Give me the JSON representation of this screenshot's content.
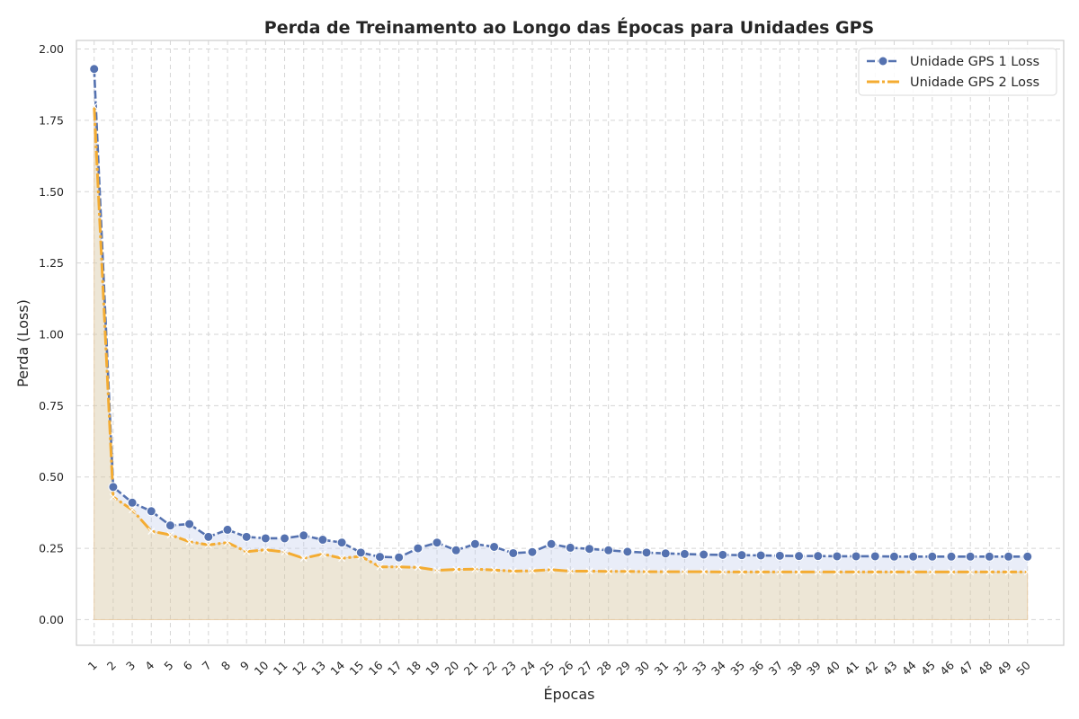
{
  "chart_data": {
    "type": "line",
    "title": "Perda de Treinamento ao Longo das Épocas para Unidades GPS",
    "xlabel": "Épocas",
    "ylabel": "Perda (Loss)",
    "x": [
      1,
      2,
      3,
      4,
      5,
      6,
      7,
      8,
      9,
      10,
      11,
      12,
      13,
      14,
      15,
      16,
      17,
      18,
      19,
      20,
      21,
      22,
      23,
      24,
      25,
      26,
      27,
      28,
      29,
      30,
      31,
      32,
      33,
      34,
      35,
      36,
      37,
      38,
      39,
      40,
      41,
      42,
      43,
      44,
      45,
      46,
      47,
      48,
      49,
      50
    ],
    "ylim": [
      -0.09,
      2.03
    ],
    "yticks": [
      "0.00",
      "0.25",
      "0.50",
      "0.75",
      "1.00",
      "1.25",
      "1.50",
      "1.75",
      "2.00"
    ],
    "grid": true,
    "legend_position": "top-right",
    "series": [
      {
        "name": "Unidade GPS 1 Loss",
        "color": "#5572b0",
        "marker": "circle",
        "line_style": "dashed",
        "values": [
          1.93,
          0.465,
          0.41,
          0.38,
          0.33,
          0.335,
          0.29,
          0.315,
          0.29,
          0.285,
          0.285,
          0.295,
          0.28,
          0.27,
          0.235,
          0.22,
          0.218,
          0.25,
          0.27,
          0.243,
          0.265,
          0.255,
          0.233,
          0.237,
          0.265,
          0.252,
          0.248,
          0.243,
          0.238,
          0.235,
          0.232,
          0.23,
          0.228,
          0.227,
          0.226,
          0.225,
          0.224,
          0.223,
          0.223,
          0.222,
          0.222,
          0.222,
          0.221,
          0.221,
          0.221,
          0.221,
          0.221,
          0.221,
          0.221,
          0.221
        ]
      },
      {
        "name": "Unidade GPS 2 Loss",
        "color": "#f4ac32",
        "marker": "x",
        "line_style": "dashdot",
        "values": [
          1.8,
          0.43,
          0.385,
          0.31,
          0.297,
          0.273,
          0.262,
          0.27,
          0.238,
          0.245,
          0.237,
          0.215,
          0.23,
          0.215,
          0.222,
          0.185,
          0.185,
          0.183,
          0.173,
          0.176,
          0.177,
          0.174,
          0.17,
          0.171,
          0.175,
          0.17,
          0.17,
          0.169,
          0.169,
          0.168,
          0.168,
          0.168,
          0.168,
          0.167,
          0.167,
          0.167,
          0.167,
          0.167,
          0.167,
          0.167,
          0.167,
          0.167,
          0.167,
          0.167,
          0.167,
          0.167,
          0.167,
          0.167,
          0.167,
          0.167
        ]
      }
    ]
  }
}
